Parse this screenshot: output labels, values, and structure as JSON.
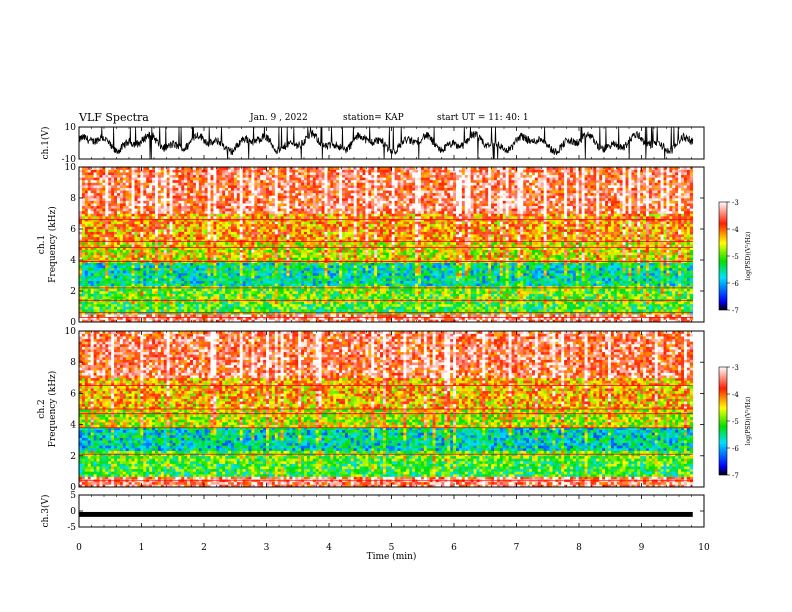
{
  "header": {
    "title": "VLF Spectra",
    "date": "Jan. 9 , 2022",
    "station": "station= KAP",
    "start": "start  UT  =   11: 40: 1"
  },
  "chart_data": [
    {
      "type": "line",
      "panel": "ch1-waveform",
      "ylabel": "ch.1(V)",
      "ylim": [
        -10,
        10
      ],
      "yticks": [
        "10",
        "-10"
      ],
      "x_range_min": [
        0,
        9.82
      ],
      "description_values": {
        "mean": 0,
        "typical_amplitude": 6,
        "peaks": 10
      },
      "color": "#000000"
    },
    {
      "type": "heatmap",
      "panel": "ch1-spectrogram",
      "ylabel": "ch.1 Frequency (kHz)",
      "ylim": [
        0,
        10
      ],
      "yticks": [
        "0",
        "2",
        "4",
        "6",
        "8",
        "10"
      ],
      "x_range_min": [
        0,
        9.82
      ],
      "colorbar": {
        "label": "log(PSD)(V²/Hz)",
        "range": [
          -7,
          -3
        ],
        "ticks": [
          "-3",
          "-4",
          "-5",
          "-6",
          "-7"
        ]
      },
      "bands_khz": [
        {
          "from": 0,
          "to": 0.5,
          "level": -3.4
        },
        {
          "from": 0.5,
          "to": 1.2,
          "level": -5.2
        },
        {
          "from": 1.2,
          "to": 2.3,
          "level": -5.0
        },
        {
          "from": 2.3,
          "to": 3.8,
          "level": -5.6
        },
        {
          "from": 3.8,
          "to": 5.2,
          "level": -4.6
        },
        {
          "from": 5.2,
          "to": 7.0,
          "level": -4.2
        },
        {
          "from": 7.0,
          "to": 10.0,
          "level": -3.6
        }
      ],
      "red_lines_khz": [
        0.3,
        0.6,
        1.4,
        2.2,
        3.9,
        4.8,
        5.2,
        6.6
      ]
    },
    {
      "type": "heatmap",
      "panel": "ch2-spectrogram",
      "ylabel": "ch.2 Frequency (kHz)",
      "ylim": [
        0,
        10
      ],
      "yticks": [
        "0",
        "2",
        "4",
        "6",
        "8",
        "10"
      ],
      "x_range_min": [
        0,
        9.82
      ],
      "colorbar": {
        "label": "log(PSD)(V²/Hz)",
        "range": [
          -7,
          -3
        ],
        "ticks": [
          "-3",
          "-4",
          "-5",
          "-6",
          "-7"
        ]
      },
      "bands_khz": [
        {
          "from": 0,
          "to": 0.6,
          "level": -3.5
        },
        {
          "from": 0.6,
          "to": 1.6,
          "level": -5.2
        },
        {
          "from": 1.6,
          "to": 2.3,
          "level": -5.0
        },
        {
          "from": 2.3,
          "to": 3.9,
          "level": -5.7
        },
        {
          "from": 3.9,
          "to": 5.0,
          "level": -4.7
        },
        {
          "from": 5.0,
          "to": 7.0,
          "level": -4.3
        },
        {
          "from": 7.0,
          "to": 10.0,
          "level": -3.6
        }
      ],
      "red_lines_khz": [
        0.4,
        2.1,
        3.8,
        4.7,
        5.0,
        6.5
      ]
    },
    {
      "type": "line",
      "panel": "ch3-waveform",
      "ylabel": "ch.3(V)",
      "ylim": [
        -5,
        5
      ],
      "yticks": [
        "5",
        "0",
        "-5"
      ],
      "x_range_min": [
        0,
        9.82
      ],
      "values_approx": {
        "level_low": -0.9,
        "level_high": -0.3
      },
      "color": "#000000"
    }
  ],
  "x_axis": {
    "label": "Time (min)",
    "range": [
      0,
      10
    ],
    "ticks": [
      "0",
      "1",
      "2",
      "3",
      "4",
      "5",
      "6",
      "7",
      "8",
      "9",
      "10"
    ]
  },
  "colors": {
    "hot": "#ff1a00",
    "warm": "#ffe000",
    "mid": "#00e000",
    "cool": "#00d8ff",
    "cold": "#0000ff",
    "floor": "#000000"
  }
}
